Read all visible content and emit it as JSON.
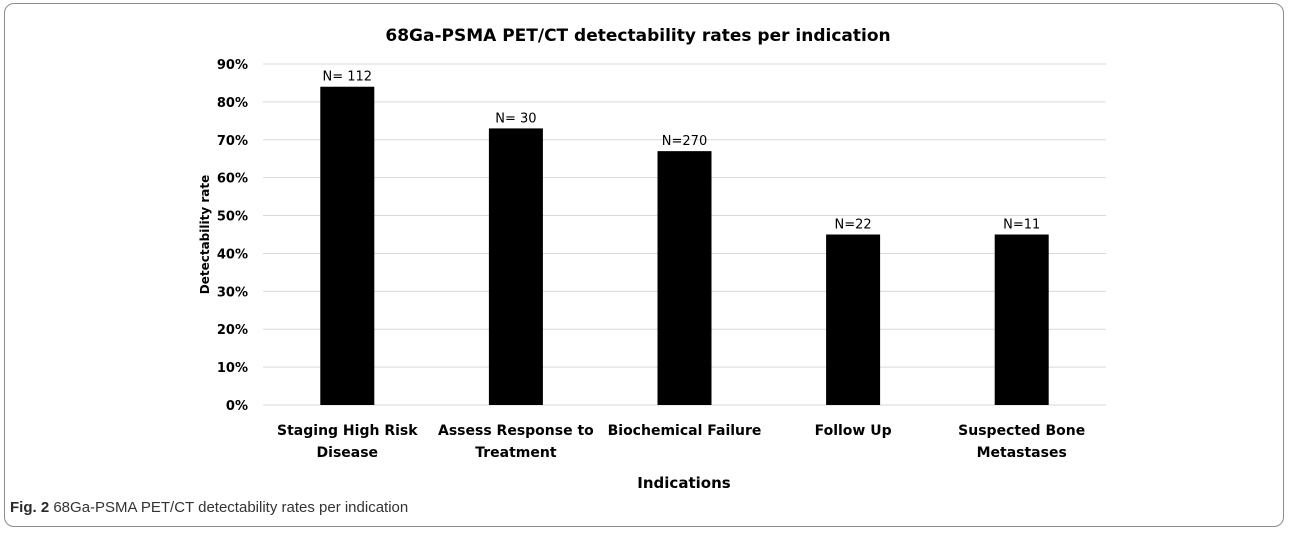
{
  "chart_data": {
    "type": "bar",
    "title": "68Ga-PSMA PET/CT detectability rates per indication",
    "xlabel": "Indications",
    "ylabel": "Detectability rate",
    "categories": [
      [
        "Staging High Risk",
        "Disease"
      ],
      [
        "Assess Response to",
        "Treatment"
      ],
      [
        "Biochemical Failure"
      ],
      [
        "Follow Up"
      ],
      [
        "Suspected Bone",
        "Metastases"
      ]
    ],
    "values": [
      0.84,
      0.73,
      0.67,
      0.45,
      0.45
    ],
    "data_labels": [
      "N= 112",
      "N= 30",
      "N=270",
      "N=22",
      "N=11"
    ],
    "ylim": [
      0,
      0.9
    ],
    "yticks": [
      "0%",
      "10%",
      "20%",
      "30%",
      "40%",
      "50%",
      "60%",
      "70%",
      "80%",
      "90%"
    ],
    "grid": true,
    "legend": "none",
    "bar_color": "#000000",
    "grid_color": "#d9d9d9"
  },
  "caption": {
    "label": "Fig. 2",
    "text": " 68Ga-PSMA PET/CT detectability rates per indication"
  }
}
